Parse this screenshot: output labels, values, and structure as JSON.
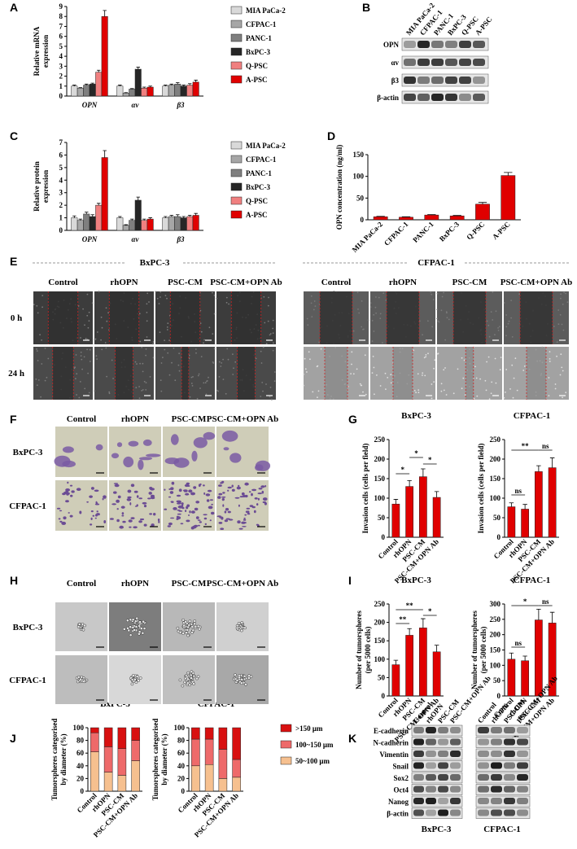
{
  "panel_letters": [
    "A",
    "B",
    "C",
    "D",
    "E",
    "F",
    "G",
    "H",
    "I",
    "J",
    "K"
  ],
  "chart_data": [
    {
      "type": "bar",
      "y_label": [
        "Relative mRNA",
        "expression"
      ],
      "categories": [
        "OPN",
        "αv",
        "β3"
      ],
      "ylim": [
        0,
        9
      ],
      "yticks": [
        0,
        1,
        2,
        3,
        4,
        5,
        6,
        7,
        8,
        9
      ],
      "series": [
        {
          "name": "MIA PaCa-2",
          "color": "#d9d9d9",
          "values": [
            1.0,
            1.0,
            1.0
          ],
          "errors": [
            0.1,
            0.1,
            0.1
          ]
        },
        {
          "name": "CFPAC-1",
          "color": "#a6a6a6",
          "values": [
            0.8,
            0.3,
            1.1
          ],
          "errors": [
            0.05,
            0.05,
            0.1
          ]
        },
        {
          "name": "PANC-1",
          "color": "#7f7f7f",
          "values": [
            1.1,
            0.7,
            1.2
          ],
          "errors": [
            0.1,
            0.05,
            0.15
          ]
        },
        {
          "name": "BxPC-3",
          "color": "#262626",
          "values": [
            1.2,
            2.7,
            1.0
          ],
          "errors": [
            0.1,
            0.2,
            0.1
          ]
        },
        {
          "name": "Q-PSC",
          "color": "#f08080",
          "values": [
            2.4,
            0.8,
            1.1
          ],
          "errors": [
            0.2,
            0.1,
            0.15
          ]
        },
        {
          "name": "A-PSC",
          "color": "#e00000",
          "values": [
            8.0,
            0.9,
            1.4
          ],
          "errors": [
            0.6,
            0.1,
            0.2
          ]
        }
      ]
    },
    {
      "type": "bar",
      "y_label": [
        "Relative protein",
        "expression"
      ],
      "categories": [
        "OPN",
        "αv",
        "β3"
      ],
      "ylim": [
        0,
        7
      ],
      "yticks": [
        0,
        1,
        2,
        3,
        4,
        5,
        6,
        7
      ],
      "series": [
        {
          "name": "MIA PaCa-2",
          "color": "#d9d9d9",
          "values": [
            1.0,
            1.0,
            1.0
          ],
          "errors": [
            0.15,
            0.1,
            0.1
          ]
        },
        {
          "name": "CFPAC-1",
          "color": "#a6a6a6",
          "values": [
            0.8,
            0.4,
            1.1
          ],
          "errors": [
            0.1,
            0.05,
            0.1
          ]
        },
        {
          "name": "PANC-1",
          "color": "#7f7f7f",
          "values": [
            1.3,
            0.8,
            1.1
          ],
          "errors": [
            0.15,
            0.1,
            0.15
          ]
        },
        {
          "name": "BxPC-3",
          "color": "#262626",
          "values": [
            1.1,
            2.4,
            1.0
          ],
          "errors": [
            0.15,
            0.25,
            0.1
          ]
        },
        {
          "name": "Q-PSC",
          "color": "#f08080",
          "values": [
            2.0,
            0.8,
            1.1
          ],
          "errors": [
            0.15,
            0.1,
            0.1
          ]
        },
        {
          "name": "A-PSC",
          "color": "#e00000",
          "values": [
            5.8,
            0.9,
            1.2
          ],
          "errors": [
            0.55,
            0.1,
            0.15
          ]
        }
      ]
    },
    {
      "type": "bar",
      "y_label": [
        "OPN concentration (ng/ml)"
      ],
      "categories": [
        "MIA PaCa-2",
        "CFPAC-1",
        "PANC-1",
        "BxPC-3",
        "Q-PSC",
        "A-PSC"
      ],
      "values": [
        7,
        6,
        11,
        9,
        36,
        102
      ],
      "errors": [
        1,
        1,
        1,
        1,
        4,
        7
      ],
      "color": "#e00000",
      "ylim": [
        0,
        150
      ],
      "yticks": [
        0,
        50,
        100,
        150
      ]
    },
    {
      "type": "bar",
      "title": "BxPC-3",
      "y_label": [
        "Invasion cells (cells per field)"
      ],
      "categories": [
        "Control",
        "rhOPN",
        "PSC-CM",
        "PSC-CM+OPN Ab"
      ],
      "values": [
        85,
        130,
        155,
        102
      ],
      "errors": [
        12,
        15,
        20,
        15
      ],
      "color": "#e00000",
      "ylim": [
        0,
        250
      ],
      "yticks": [
        0,
        50,
        100,
        150,
        200,
        250
      ],
      "annotations": [
        "*",
        "*",
        "*"
      ]
    },
    {
      "type": "bar",
      "title": "CFPAC-1",
      "y_label": [
        "Invasion cells (cells per field)"
      ],
      "categories": [
        "Control",
        "rhOPN",
        "PSC-CM",
        "PSC-CM+OPN Ab"
      ],
      "values": [
        78,
        72,
        168,
        178
      ],
      "errors": [
        10,
        12,
        15,
        25
      ],
      "color": "#e00000",
      "ylim": [
        0,
        250
      ],
      "yticks": [
        0,
        50,
        100,
        150,
        200,
        250
      ],
      "annotations": [
        "ns",
        "**",
        "ns"
      ]
    },
    {
      "type": "bar",
      "title": "BxPC-3",
      "y_label": [
        "Number of tumorspheres",
        "(per 5000 cells)"
      ],
      "categories": [
        "Control",
        "rhOPN",
        "PSC-CM",
        "PSC-CM+OPN Ab"
      ],
      "values": [
        85,
        165,
        185,
        120
      ],
      "errors": [
        12,
        18,
        25,
        18
      ],
      "color": "#e00000",
      "ylim": [
        0,
        250
      ],
      "yticks": [
        0,
        50,
        100,
        150,
        200,
        250
      ],
      "annotations": [
        "**",
        "**",
        "*"
      ]
    },
    {
      "type": "bar",
      "title": "CFPAC-1",
      "y_label": [
        "Number of tumorspheres",
        "(per 5000 cells)"
      ],
      "categories": [
        "Control",
        "rhOPN",
        "PSC-CM",
        "PSC-CM+OPN Ab"
      ],
      "values": [
        120,
        115,
        248,
        238
      ],
      "errors": [
        20,
        15,
        35,
        35
      ],
      "color": "#e00000",
      "ylim": [
        0,
        300
      ],
      "yticks": [
        0,
        50,
        100,
        150,
        200,
        250,
        300
      ],
      "annotations": [
        "ns",
        "*",
        "ns"
      ]
    },
    {
      "type": "stacked_bar",
      "title": "BxPC-3",
      "y_label": [
        "Tumorspheres categorised",
        "by diameter (%)"
      ],
      "categories": [
        "Control",
        "rhOPN",
        "PSC-CM",
        "PSC-CM+OPN Ab"
      ],
      "ylim": [
        0,
        100
      ],
      "yticks": [
        0,
        20,
        40,
        60,
        80,
        100
      ],
      "series": [
        {
          "color": "#f6c08f",
          "values": [
            62,
            30,
            25,
            48
          ]
        },
        {
          "color": "#ee6a6a",
          "values": [
            30,
            40,
            42,
            32
          ]
        },
        {
          "color": "#d81010",
          "values": [
            8,
            30,
            33,
            20
          ]
        }
      ]
    },
    {
      "type": "stacked_bar",
      "title": "CFPAC-1",
      "y_label": [
        "Tumorspheres categorised",
        "by diameter (%)"
      ],
      "categories": [
        "Control",
        "rhOPN",
        "PSC-CM",
        "PSC-CM+OPN Ab"
      ],
      "ylim": [
        0,
        100
      ],
      "yticks": [
        0,
        20,
        40,
        60,
        80,
        100
      ],
      "series": [
        {
          "name": "50~100 μm",
          "color": "#f6c08f",
          "values": [
            40,
            42,
            20,
            22
          ]
        },
        {
          "name": "100~150 μm",
          "color": "#ee6a6a",
          "values": [
            42,
            40,
            46,
            28
          ]
        },
        {
          "name": ">150 μm",
          "color": "#d81010",
          "values": [
            18,
            18,
            34,
            50
          ]
        }
      ]
    }
  ],
  "blot_B": {
    "columns": [
      "MIA PaCa-2",
      "CFPAC-1",
      "PANC-1",
      "BxPC-3",
      "Q-PSC",
      "A-PSC"
    ],
    "rows": [
      "OPN",
      "αv",
      "β3",
      "β-actin"
    ]
  },
  "panel_E": {
    "groups": [
      "BxPC-3",
      "CFPAC-1"
    ],
    "columns": [
      "Control",
      "rhOPN",
      "PSC-CM",
      "PSC-CM+OPN Ab"
    ],
    "rows": [
      "0 h",
      "24 h"
    ]
  },
  "panel_F": {
    "columns": [
      "Control",
      "rhOPN",
      "PSC-CM",
      "PSC-CM+OPN Ab"
    ],
    "rows": [
      "BxPC-3",
      "CFPAC-1"
    ]
  },
  "panel_H": {
    "columns": [
      "Control",
      "rhOPN",
      "PSC-CM",
      "PSC-CM+OPN Ab"
    ],
    "rows": [
      "BxPC-3",
      "CFPAC-1"
    ]
  },
  "blot_K": {
    "columns": [
      "Control",
      "rhOPN",
      "PSC-CM",
      "PSC-CM+OPN Ab"
    ],
    "rows": [
      "E-cadherin",
      "N-cadherin",
      "Vimentin",
      "Snail",
      "Sox2",
      "Oct4",
      "Nanog",
      "β-actin"
    ],
    "groups": [
      "BxPC-3",
      "CFPAC-1"
    ]
  }
}
